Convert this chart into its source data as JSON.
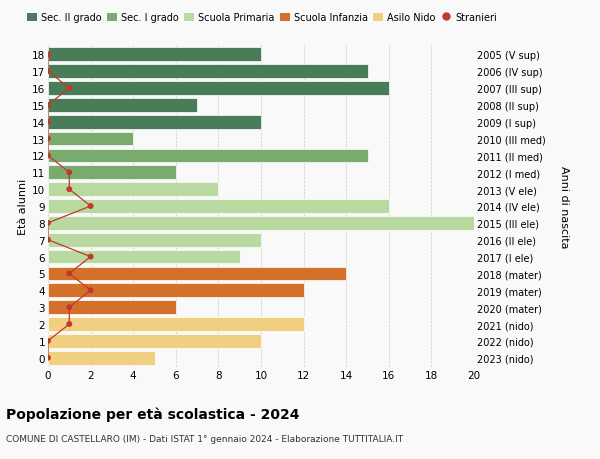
{
  "ages": [
    18,
    17,
    16,
    15,
    14,
    13,
    12,
    11,
    10,
    9,
    8,
    7,
    6,
    5,
    4,
    3,
    2,
    1,
    0
  ],
  "anni_nascita_labels": [
    "2005 (V sup)",
    "2006 (IV sup)",
    "2007 (III sup)",
    "2008 (II sup)",
    "2009 (I sup)",
    "2010 (III med)",
    "2011 (II med)",
    "2012 (I med)",
    "2013 (V ele)",
    "2014 (IV ele)",
    "2015 (III ele)",
    "2016 (II ele)",
    "2017 (I ele)",
    "2018 (mater)",
    "2019 (mater)",
    "2020 (mater)",
    "2021 (nido)",
    "2022 (nido)",
    "2023 (nido)"
  ],
  "bar_values": [
    10,
    15,
    16,
    7,
    10,
    4,
    15,
    6,
    8,
    16,
    20,
    10,
    9,
    14,
    12,
    6,
    12,
    10,
    5
  ],
  "bar_colors": [
    "#4a7c59",
    "#4a7c59",
    "#4a7c59",
    "#4a7c59",
    "#4a7c59",
    "#7aab6e",
    "#7aab6e",
    "#7aab6e",
    "#b8d9a0",
    "#b8d9a0",
    "#b8d9a0",
    "#b8d9a0",
    "#b8d9a0",
    "#d4702a",
    "#d4702a",
    "#d4702a",
    "#f0d080",
    "#f0d080",
    "#f0d080"
  ],
  "stranieri_values": [
    0,
    0,
    1,
    0,
    0,
    0,
    0,
    1,
    1,
    2,
    0,
    0,
    2,
    1,
    2,
    1,
    1,
    0,
    0
  ],
  "legend_labels": [
    "Sec. II grado",
    "Sec. I grado",
    "Scuola Primaria",
    "Scuola Infanzia",
    "Asilo Nido",
    "Stranieri"
  ],
  "legend_colors": [
    "#4a7c59",
    "#7aab6e",
    "#b8d9a0",
    "#d4702a",
    "#f0d080",
    "#c0392b"
  ],
  "title": "Popolazione per età scolastica - 2024",
  "subtitle": "COMUNE DI CASTELLARO (IM) - Dati ISTAT 1° gennaio 2024 - Elaborazione TUTTITALIA.IT",
  "ylabel": "Età alunni",
  "right_ylabel": "Anni di nascita",
  "xlabel_ticks": [
    0,
    2,
    4,
    6,
    8,
    10,
    12,
    14,
    16,
    18,
    20
  ],
  "xlim": [
    0,
    20
  ],
  "bg_color": "#f9f9f9",
  "grid_color": "#cccccc",
  "stranieri_dot_color": "#c0392b",
  "stranieri_line_color": "#c0392b"
}
